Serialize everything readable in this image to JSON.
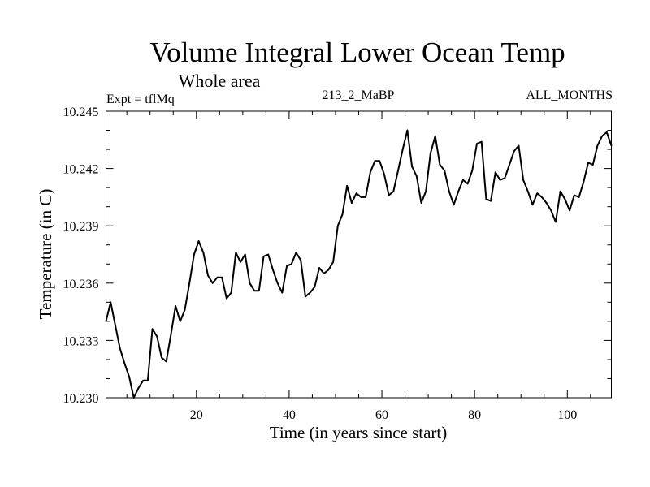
{
  "chart_data": {
    "type": "line",
    "title": "Volume Integral Lower Ocean Temp",
    "subtitle": "Whole area",
    "annotations": {
      "left": "Expt = tflMq",
      "center": "213_2_MaBP",
      "right": "ALL_MONTHS"
    },
    "xlabel": "Time (in years since start)",
    "ylabel": "Temperature (in C)",
    "xlim": [
      0.5,
      109.5
    ],
    "ylim": [
      10.23,
      10.245
    ],
    "xticks": [
      20,
      40,
      60,
      80,
      100
    ],
    "xtick_labels": [
      "20",
      "40",
      "60",
      "80",
      "100"
    ],
    "x_minor_step": 5,
    "yticks": [
      10.23,
      10.233,
      10.236,
      10.239,
      10.242,
      10.245
    ],
    "ytick_labels": [
      "10.230",
      "10.233",
      "10.236",
      "10.239",
      "10.242",
      "10.245"
    ],
    "y_minor_step": 0.001,
    "grid": false,
    "legend": "none",
    "series": [
      {
        "name": "Volume Integral Lower Ocean Temp",
        "color": "#000000",
        "x_start": 0.5,
        "x_step": 1,
        "values": [
          10.234,
          10.235,
          10.2338,
          10.2326,
          10.2318,
          10.2311,
          10.23,
          10.2305,
          10.2309,
          10.2309,
          10.2336,
          10.2332,
          10.2321,
          10.2319,
          10.2333,
          10.2348,
          10.234,
          10.2346,
          10.236,
          10.2375,
          10.2382,
          10.2376,
          10.2364,
          10.236,
          10.2363,
          10.2363,
          10.2352,
          10.2355,
          10.2376,
          10.2371,
          10.2375,
          10.236,
          10.2356,
          10.2356,
          10.2374,
          10.2375,
          10.2367,
          10.236,
          10.2355,
          10.2369,
          10.237,
          10.2376,
          10.2372,
          10.2353,
          10.2355,
          10.2358,
          10.2368,
          10.2365,
          10.2367,
          10.2371,
          10.239,
          10.2396,
          10.2411,
          10.2402,
          10.2407,
          10.2405,
          10.2405,
          10.2418,
          10.2424,
          10.2424,
          10.2417,
          10.2406,
          10.2408,
          10.2419,
          10.243,
          10.244,
          10.2421,
          10.2416,
          10.2402,
          10.2408,
          10.2428,
          10.2437,
          10.2422,
          10.2419,
          10.2408,
          10.2401,
          10.2408,
          10.2414,
          10.2412,
          10.2419,
          10.2433,
          10.2434,
          10.2404,
          10.2403,
          10.2418,
          10.2414,
          10.2415,
          10.2422,
          10.2429,
          10.2432,
          10.2414,
          10.2408,
          10.2401,
          10.2407,
          10.2405,
          10.2402,
          10.2398,
          10.2392,
          10.2408,
          10.2404,
          10.2398,
          10.2406,
          10.2405,
          10.2413,
          10.2423,
          10.2422,
          10.2432,
          10.2437,
          10.2439,
          10.2432
        ]
      }
    ]
  }
}
